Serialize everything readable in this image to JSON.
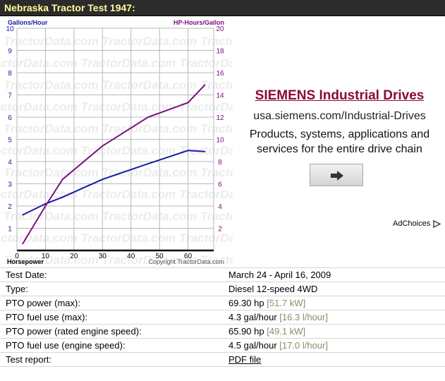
{
  "header": {
    "title": "Nebraska Tractor Test 1947:"
  },
  "chart_data": {
    "type": "line",
    "left_axis_label": "Gallons/Hour",
    "right_axis_label": "HP-Hours/Gallon",
    "xlabel": "Horsepower",
    "copyright": "Copyright TractorData.com",
    "watermark": "TractorData.com",
    "x_ticks": [
      "0",
      "10",
      "20",
      "30",
      "40",
      "50",
      "60"
    ],
    "left_ticks": [
      "1",
      "2",
      "3",
      "4",
      "5",
      "6",
      "7",
      "8",
      "9",
      "10"
    ],
    "right_ticks": [
      "2",
      "4",
      "6",
      "8",
      "10",
      "12",
      "14",
      "16",
      "18",
      "20"
    ],
    "xlim": [
      0,
      69
    ],
    "ylim_left": [
      0,
      10
    ],
    "ylim_right": [
      0,
      20
    ],
    "grid": true,
    "series": [
      {
        "color": "#1a1aa6",
        "axis": "left",
        "x": [
          2,
          10,
          16,
          30,
          46,
          60,
          65.9
        ],
        "y": [
          1.6,
          2.1,
          2.4,
          3.2,
          3.9,
          4.5,
          4.45
        ]
      },
      {
        "color": "#7a1080",
        "axis": "right",
        "x": [
          2,
          10,
          16,
          30,
          46,
          60,
          65.9
        ],
        "y": [
          0.6,
          4.0,
          6.4,
          9.4,
          12.0,
          13.3,
          14.9
        ]
      }
    ],
    "axis_colors": {
      "left": "#1a1aa6",
      "right": "#7a1080"
    }
  },
  "ad": {
    "title": "SIEMENS Industrial Drives",
    "url": "usa.siemens.com/Industrial-Drives",
    "description": "Products, systems, applications and services for the entire drive chain",
    "button_icon": "arrow-right-icon",
    "adchoices": "AdChoices"
  },
  "specs": {
    "test_date": {
      "label": "Test Date:",
      "value": "March 24 - April 16, 2009"
    },
    "type": {
      "label": "Type:",
      "value": "Diesel 12-speed 4WD"
    },
    "pto_power_max": {
      "label": "PTO power (max):",
      "value": "69.30 hp",
      "metric": "[51.7 kW]"
    },
    "pto_fuel_max": {
      "label": "PTO fuel use (max):",
      "value": "4.3 gal/hour",
      "metric": "[16.3 l/hour]"
    },
    "pto_power_rated": {
      "label": "PTO power (rated engine speed):",
      "value": "65.90 hp",
      "metric": "[49.1 kW]"
    },
    "pto_fuel_engine": {
      "label": "PTO fuel use (engine speed):",
      "value": "4.5 gal/hour",
      "metric": "[17.0 l/hour]"
    },
    "test_report": {
      "label": "Test report:",
      "value": "PDF file"
    }
  },
  "colors": {
    "header_bg": "#2b2b2b",
    "header_text": "#ffff99",
    "ad_title": "#8b0a3a",
    "metric_text": "#8c8c6a"
  }
}
